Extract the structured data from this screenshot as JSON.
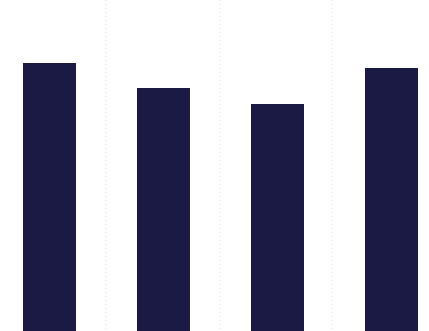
{
  "chart_data": {
    "type": "bar",
    "categories": [
      "",
      "",
      "",
      ""
    ],
    "values": [
      268,
      243,
      227,
      263
    ],
    "ylim": [
      0,
      331
    ],
    "grid": true,
    "grid_axis": "x",
    "legend": "none",
    "colors": {
      "bar": "#1b1a45",
      "background": "#ffffff",
      "grid": "#d8d8d8"
    }
  }
}
